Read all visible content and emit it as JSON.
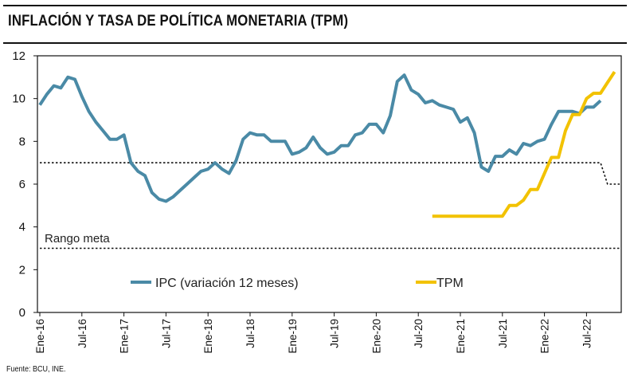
{
  "header": {
    "title": "INFLACIÓN Y TASA DE POLÍTICA MONETARIA (TPM)"
  },
  "footer": {
    "source": "Fuente: BCU, INE."
  },
  "chart_data": {
    "type": "line",
    "x_unit": "month index from Ene-16 (0) to Dic-22 (83)",
    "yticks": [
      "0",
      "2",
      "4",
      "6",
      "8",
      "10",
      "12"
    ],
    "ylim": [
      0,
      12
    ],
    "x_ticks": [
      {
        "label": "Ene-16",
        "x": 0
      },
      {
        "label": "Jul-16",
        "x": 6
      },
      {
        "label": "Ene-17",
        "x": 12
      },
      {
        "label": "Jul-17",
        "x": 18
      },
      {
        "label": "Ene-18",
        "x": 24
      },
      {
        "label": "Jul-18",
        "x": 30
      },
      {
        "label": "Ene-19",
        "x": 36
      },
      {
        "label": "Jul-19",
        "x": 42
      },
      {
        "label": "Ene-20",
        "x": 48
      },
      {
        "label": "Jul-20",
        "x": 54
      },
      {
        "label": "Ene-21",
        "x": 60
      },
      {
        "label": "Jul-21",
        "x": 66
      },
      {
        "label": "Ene-22",
        "x": 72
      },
      {
        "label": "Jul-22",
        "x": 78
      }
    ],
    "series": [
      {
        "name": "IPC (variación 12 meses)",
        "color": "#4a8aa6",
        "x": [
          0,
          1,
          2,
          3,
          4,
          5,
          6,
          7,
          8,
          9,
          10,
          11,
          12,
          13,
          14,
          15,
          16,
          17,
          18,
          19,
          20,
          21,
          22,
          23,
          24,
          25,
          26,
          27,
          28,
          29,
          30,
          31,
          32,
          33,
          34,
          35,
          36,
          37,
          38,
          39,
          40,
          41,
          42,
          43,
          44,
          45,
          46,
          47,
          48,
          49,
          50,
          51,
          52,
          53,
          54,
          55,
          56,
          57,
          58,
          59,
          60,
          61,
          62,
          63,
          64,
          65,
          66,
          67,
          68,
          69,
          70,
          71,
          72,
          73,
          74,
          75,
          76,
          77,
          78,
          79,
          80
        ],
        "values": [
          9.7,
          10.2,
          10.6,
          10.5,
          11.0,
          10.9,
          10.1,
          9.4,
          8.9,
          8.5,
          8.1,
          8.1,
          8.3,
          7.0,
          6.6,
          6.4,
          5.6,
          5.3,
          5.2,
          5.4,
          5.7,
          6.0,
          6.3,
          6.6,
          6.7,
          7.0,
          6.7,
          6.5,
          7.1,
          8.1,
          8.4,
          8.3,
          8.3,
          8.0,
          8.0,
          8.0,
          7.4,
          7.5,
          7.7,
          8.2,
          7.7,
          7.4,
          7.5,
          7.8,
          7.8,
          8.3,
          8.4,
          8.8,
          8.8,
          8.4,
          9.2,
          10.8,
          11.1,
          10.4,
          10.2,
          9.8,
          9.9,
          9.7,
          9.6,
          9.5,
          8.9,
          9.1,
          8.4,
          6.8,
          6.6,
          7.3,
          7.3,
          7.6,
          7.4,
          7.9,
          7.8,
          8.0,
          8.1,
          8.8,
          9.4,
          9.4,
          9.4,
          9.3,
          9.6,
          9.6,
          9.9
        ]
      },
      {
        "name": "TPM",
        "color": "#f2c200",
        "x": [
          56,
          57,
          58,
          59,
          60,
          61,
          62,
          63,
          64,
          65,
          66,
          67,
          68,
          69,
          70,
          71,
          72,
          73,
          74,
          75,
          76,
          77,
          78,
          79,
          80,
          81,
          82
        ],
        "values": [
          4.5,
          4.5,
          4.5,
          4.5,
          4.5,
          4.5,
          4.5,
          4.5,
          4.5,
          4.5,
          4.5,
          5.0,
          5.0,
          5.25,
          5.75,
          5.75,
          6.5,
          7.25,
          7.25,
          8.5,
          9.25,
          9.25,
          10.0,
          10.25,
          10.25,
          10.75,
          11.25
        ]
      }
    ],
    "reference_lines": [
      {
        "name": "Meta superior",
        "segments": [
          [
            0,
            7
          ],
          [
            80,
            7
          ],
          [
            81,
            6
          ],
          [
            85,
            6
          ]
        ]
      },
      {
        "name": "Meta inferior",
        "segments": [
          [
            0,
            3
          ],
          [
            85,
            3
          ]
        ]
      }
    ],
    "annotations": [
      "Rango meta"
    ],
    "legend": [
      "IPC (variación 12 meses)",
      "TPM"
    ]
  }
}
